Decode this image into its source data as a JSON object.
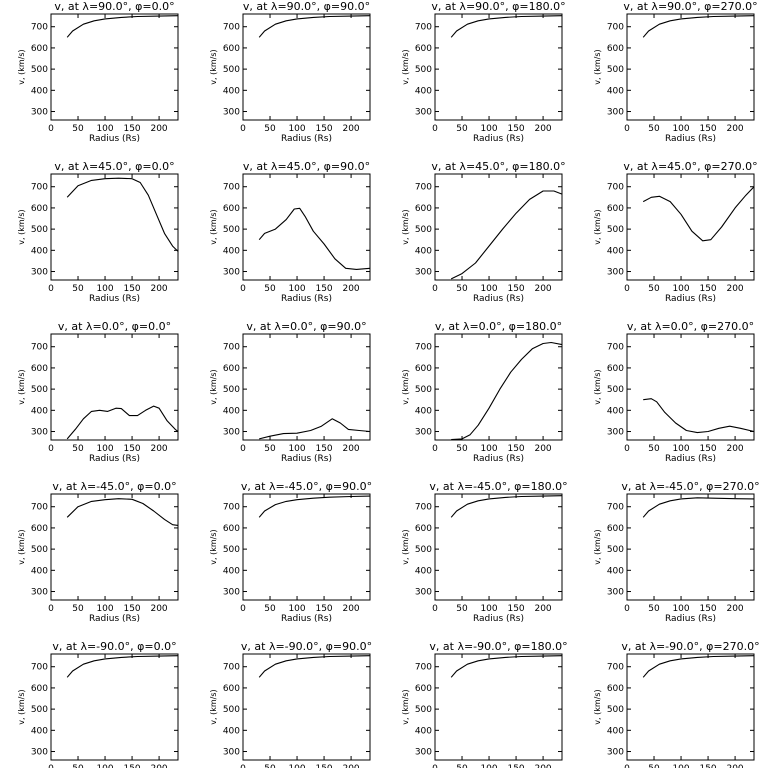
{
  "figure": {
    "panel_titles": [
      "v, at λ=90.0°, φ=0.0°",
      "v, at λ=90.0°, φ=90.0°",
      "v, at λ=90.0°, φ=180.0°",
      "v, at λ=90.0°, φ=270.0°",
      "v, at λ=45.0°, φ=0.0°",
      "v, at λ=45.0°, φ=90.0°",
      "v, at λ=45.0°, φ=180.0°",
      "v, at λ=45.0°, φ=270.0°",
      "v, at λ=0.0°, φ=0.0°",
      "v, at λ=0.0°, φ=90.0°",
      "v, at λ=0.0°, φ=180.0°",
      "v, at λ=0.0°, φ=270.0°",
      "v, at λ=-45.0°, φ=0.0°",
      "v, at λ=-45.0°, φ=90.0°",
      "v, at λ=-45.0°, φ=180.0°",
      "v, at λ=-45.0°, φ=270.0°",
      "v, at λ=-90.0°, φ=0.0°",
      "v, at λ=-90.0°, φ=90.0°",
      "v, at λ=-90.0°, φ=180.0°",
      "v, at λ=-90.0°, φ=270.0°"
    ],
    "xlabel": "Radius (Rs)",
    "ylabel": "v, (km/s)"
  },
  "chart_data": [
    {
      "type": "line",
      "title": "v, at λ=90.0°, φ=0.0°",
      "xlabel": "Radius (Rs)",
      "ylabel": "v, (km/s)",
      "xlim": [
        0,
        235
      ],
      "ylim": [
        260,
        760
      ],
      "xticks": [
        0,
        50,
        100,
        150,
        200
      ],
      "yticks": [
        300,
        400,
        500,
        600,
        700
      ],
      "series": [
        {
          "x": [
            30,
            40,
            60,
            80,
            100,
            130,
            160,
            200,
            235
          ],
          "y": [
            650,
            680,
            712,
            728,
            737,
            744,
            748,
            750,
            752
          ]
        }
      ]
    },
    {
      "type": "line",
      "title": "v, at λ=90.0°, φ=90.0°",
      "xlabel": "Radius (Rs)",
      "ylabel": "v, (km/s)",
      "xlim": [
        0,
        235
      ],
      "ylim": [
        260,
        760
      ],
      "xticks": [
        0,
        50,
        100,
        150,
        200
      ],
      "yticks": [
        300,
        400,
        500,
        600,
        700
      ],
      "series": [
        {
          "x": [
            30,
            40,
            60,
            80,
            100,
            130,
            160,
            200,
            235
          ],
          "y": [
            650,
            680,
            712,
            728,
            737,
            744,
            748,
            750,
            752
          ]
        }
      ]
    },
    {
      "type": "line",
      "title": "v, at λ=90.0°, φ=180.0°",
      "xlabel": "Radius (Rs)",
      "ylabel": "v, (km/s)",
      "xlim": [
        0,
        235
      ],
      "ylim": [
        260,
        760
      ],
      "xticks": [
        0,
        50,
        100,
        150,
        200
      ],
      "yticks": [
        300,
        400,
        500,
        600,
        700
      ],
      "series": [
        {
          "x": [
            30,
            40,
            60,
            80,
            100,
            130,
            160,
            200,
            235
          ],
          "y": [
            650,
            680,
            712,
            728,
            737,
            744,
            748,
            750,
            752
          ]
        }
      ]
    },
    {
      "type": "line",
      "title": "v, at λ=90.0°, φ=270.0°",
      "xlabel": "Radius (Rs)",
      "ylabel": "v, (km/s)",
      "xlim": [
        0,
        235
      ],
      "ylim": [
        260,
        760
      ],
      "xticks": [
        0,
        50,
        100,
        150,
        200
      ],
      "yticks": [
        300,
        400,
        500,
        600,
        700
      ],
      "series": [
        {
          "x": [
            30,
            40,
            60,
            80,
            100,
            130,
            160,
            200,
            235
          ],
          "y": [
            650,
            680,
            712,
            728,
            737,
            744,
            748,
            750,
            752
          ]
        }
      ]
    },
    {
      "type": "line",
      "title": "v, at λ=45.0°, φ=0.0°",
      "xlabel": "Radius (Rs)",
      "ylabel": "v, (km/s)",
      "xlim": [
        0,
        235
      ],
      "ylim": [
        260,
        760
      ],
      "xticks": [
        0,
        50,
        100,
        150,
        200
      ],
      "yticks": [
        300,
        400,
        500,
        600,
        700
      ],
      "series": [
        {
          "x": [
            30,
            50,
            75,
            100,
            125,
            150,
            165,
            180,
            195,
            210,
            225,
            235
          ],
          "y": [
            650,
            705,
            730,
            738,
            740,
            738,
            720,
            660,
            570,
            480,
            420,
            395
          ]
        }
      ]
    },
    {
      "type": "line",
      "title": "v, at λ=45.0°, φ=90.0°",
      "xlabel": "Radius (Rs)",
      "ylabel": "v, (km/s)",
      "xlim": [
        0,
        235
      ],
      "ylim": [
        260,
        760
      ],
      "xticks": [
        0,
        50,
        100,
        150,
        200
      ],
      "yticks": [
        300,
        400,
        500,
        600,
        700
      ],
      "series": [
        {
          "x": [
            30,
            40,
            60,
            80,
            95,
            105,
            115,
            130,
            150,
            170,
            190,
            210,
            235
          ],
          "y": [
            450,
            480,
            500,
            545,
            595,
            598,
            560,
            490,
            430,
            360,
            315,
            310,
            315
          ]
        }
      ]
    },
    {
      "type": "line",
      "title": "v, at λ=45.0°, φ=180.0°",
      "xlabel": "Radius (Rs)",
      "ylabel": "v, (km/s)",
      "xlim": [
        0,
        235
      ],
      "ylim": [
        260,
        760
      ],
      "xticks": [
        0,
        50,
        100,
        150,
        200
      ],
      "yticks": [
        300,
        400,
        500,
        600,
        700
      ],
      "series": [
        {
          "x": [
            30,
            50,
            75,
            100,
            125,
            150,
            175,
            200,
            220,
            235
          ],
          "y": [
            265,
            290,
            340,
            420,
            500,
            575,
            640,
            680,
            680,
            665
          ]
        }
      ]
    },
    {
      "type": "line",
      "title": "v, at λ=45.0°, φ=270.0°",
      "xlabel": "Radius (Rs)",
      "ylabel": "v, (km/s)",
      "xlim": [
        0,
        235
      ],
      "ylim": [
        260,
        760
      ],
      "xticks": [
        0,
        50,
        100,
        150,
        200
      ],
      "yticks": [
        300,
        400,
        500,
        600,
        700
      ],
      "series": [
        {
          "x": [
            30,
            45,
            60,
            80,
            100,
            120,
            140,
            155,
            175,
            200,
            220,
            235
          ],
          "y": [
            630,
            650,
            655,
            630,
            570,
            490,
            445,
            450,
            510,
            600,
            660,
            700
          ]
        }
      ]
    },
    {
      "type": "line",
      "title": "v, at λ=0.0°, φ=0.0°",
      "xlabel": "Radius (Rs)",
      "ylabel": "v, (km/s)",
      "xlim": [
        0,
        235
      ],
      "ylim": [
        260,
        760
      ],
      "xticks": [
        0,
        50,
        100,
        150,
        200
      ],
      "yticks": [
        300,
        400,
        500,
        600,
        700
      ],
      "series": [
        {
          "x": [
            30,
            45,
            60,
            75,
            90,
            105,
            120,
            130,
            145,
            160,
            175,
            190,
            200,
            215,
            230,
            235
          ],
          "y": [
            265,
            310,
            360,
            395,
            400,
            395,
            410,
            408,
            375,
            375,
            400,
            420,
            410,
            350,
            310,
            300
          ]
        }
      ]
    },
    {
      "type": "line",
      "title": "v, at λ=0.0°, φ=90.0°",
      "xlabel": "Radius (Rs)",
      "ylabel": "v, (km/s)",
      "xlim": [
        0,
        235
      ],
      "ylim": [
        260,
        760
      ],
      "xticks": [
        0,
        50,
        100,
        150,
        200
      ],
      "yticks": [
        300,
        400,
        500,
        600,
        700
      ],
      "series": [
        {
          "x": [
            30,
            50,
            75,
            100,
            125,
            145,
            165,
            180,
            195,
            215,
            235
          ],
          "y": [
            265,
            278,
            290,
            292,
            305,
            325,
            360,
            340,
            310,
            305,
            300
          ]
        }
      ]
    },
    {
      "type": "line",
      "title": "v, at λ=0.0°, φ=180.0°",
      "xlabel": "Radius (Rs)",
      "ylabel": "v, (km/s)",
      "xlim": [
        0,
        235
      ],
      "ylim": [
        260,
        760
      ],
      "xticks": [
        0,
        50,
        100,
        150,
        200
      ],
      "yticks": [
        300,
        400,
        500,
        600,
        700
      ],
      "series": [
        {
          "x": [
            30,
            50,
            65,
            80,
            100,
            120,
            140,
            160,
            180,
            200,
            215,
            235
          ],
          "y": [
            262,
            265,
            285,
            330,
            410,
            500,
            580,
            640,
            690,
            715,
            720,
            710
          ]
        }
      ]
    },
    {
      "type": "line",
      "title": "v, at λ=0.0°, φ=270.0°",
      "xlabel": "Radius (Rs)",
      "ylabel": "v, (km/s)",
      "xlim": [
        0,
        235
      ],
      "ylim": [
        260,
        760
      ],
      "xticks": [
        0,
        50,
        100,
        150,
        200
      ],
      "yticks": [
        300,
        400,
        500,
        600,
        700
      ],
      "series": [
        {
          "x": [
            30,
            45,
            55,
            70,
            90,
            110,
            130,
            150,
            170,
            190,
            210,
            235
          ],
          "y": [
            450,
            455,
            440,
            390,
            340,
            305,
            295,
            300,
            315,
            325,
            315,
            300
          ]
        }
      ]
    },
    {
      "type": "line",
      "title": "v, at λ=-45.0°, φ=0.0°",
      "xlabel": "Radius (Rs)",
      "ylabel": "v, (km/s)",
      "xlim": [
        0,
        235
      ],
      "ylim": [
        260,
        760
      ],
      "xticks": [
        0,
        50,
        100,
        150,
        200
      ],
      "yticks": [
        300,
        400,
        500,
        600,
        700
      ],
      "series": [
        {
          "x": [
            30,
            50,
            75,
            100,
            125,
            150,
            170,
            190,
            210,
            225,
            235
          ],
          "y": [
            650,
            700,
            725,
            733,
            738,
            735,
            715,
            680,
            640,
            615,
            612
          ]
        }
      ]
    },
    {
      "type": "line",
      "title": "v, at λ=-45.0°, φ=90.0°",
      "xlabel": "Radius (Rs)",
      "ylabel": "v, (km/s)",
      "xlim": [
        0,
        235
      ],
      "ylim": [
        260,
        760
      ],
      "xticks": [
        0,
        50,
        100,
        150,
        200
      ],
      "yticks": [
        300,
        400,
        500,
        600,
        700
      ],
      "series": [
        {
          "x": [
            30,
            40,
            60,
            80,
            100,
            130,
            160,
            200,
            235
          ],
          "y": [
            650,
            680,
            710,
            725,
            733,
            740,
            745,
            748,
            750
          ]
        }
      ]
    },
    {
      "type": "line",
      "title": "v, at λ=-45.0°, φ=180.0°",
      "xlabel": "Radius (Rs)",
      "ylabel": "v, (km/s)",
      "xlim": [
        0,
        235
      ],
      "ylim": [
        260,
        760
      ],
      "xticks": [
        0,
        50,
        100,
        150,
        200
      ],
      "yticks": [
        300,
        400,
        500,
        600,
        700
      ],
      "series": [
        {
          "x": [
            30,
            40,
            60,
            80,
            100,
            130,
            160,
            200,
            235
          ],
          "y": [
            650,
            680,
            712,
            728,
            737,
            744,
            748,
            750,
            752
          ]
        }
      ]
    },
    {
      "type": "line",
      "title": "v, at λ=-45.0°, φ=270.0°",
      "xlabel": "Radius (Rs)",
      "ylabel": "v, (km/s)",
      "xlim": [
        0,
        235
      ],
      "ylim": [
        260,
        760
      ],
      "xticks": [
        0,
        50,
        100,
        150,
        200
      ],
      "yticks": [
        300,
        400,
        500,
        600,
        700
      ],
      "series": [
        {
          "x": [
            30,
            40,
            60,
            80,
            100,
            130,
            160,
            200,
            235
          ],
          "y": [
            650,
            680,
            712,
            728,
            737,
            742,
            740,
            738,
            737
          ]
        }
      ]
    },
    {
      "type": "line",
      "title": "v, at λ=-90.0°, φ=0.0°",
      "xlabel": "Radius (Rs)",
      "ylabel": "v, (km/s)",
      "xlim": [
        0,
        235
      ],
      "ylim": [
        260,
        760
      ],
      "xticks": [
        0,
        50,
        100,
        150,
        200
      ],
      "yticks": [
        300,
        400,
        500,
        600,
        700
      ],
      "series": [
        {
          "x": [
            30,
            40,
            60,
            80,
            100,
            130,
            160,
            200,
            235
          ],
          "y": [
            650,
            680,
            712,
            728,
            737,
            744,
            748,
            750,
            752
          ]
        }
      ]
    },
    {
      "type": "line",
      "title": "v, at λ=-90.0°, φ=90.0°",
      "xlabel": "Radius (Rs)",
      "ylabel": "v, (km/s)",
      "xlim": [
        0,
        235
      ],
      "ylim": [
        260,
        760
      ],
      "xticks": [
        0,
        50,
        100,
        150,
        200
      ],
      "yticks": [
        300,
        400,
        500,
        600,
        700
      ],
      "series": [
        {
          "x": [
            30,
            40,
            60,
            80,
            100,
            130,
            160,
            200,
            235
          ],
          "y": [
            650,
            680,
            712,
            728,
            737,
            744,
            748,
            750,
            752
          ]
        }
      ]
    },
    {
      "type": "line",
      "title": "v, at λ=-90.0°, φ=180.0°",
      "xlabel": "Radius (Rs)",
      "ylabel": "v, (km/s)",
      "xlim": [
        0,
        235
      ],
      "ylim": [
        260,
        760
      ],
      "xticks": [
        0,
        50,
        100,
        150,
        200
      ],
      "yticks": [
        300,
        400,
        500,
        600,
        700
      ],
      "series": [
        {
          "x": [
            30,
            40,
            60,
            80,
            100,
            130,
            160,
            200,
            235
          ],
          "y": [
            650,
            680,
            712,
            728,
            737,
            744,
            748,
            750,
            752
          ]
        }
      ]
    },
    {
      "type": "line",
      "title": "v, at λ=-90.0°, φ=270.0°",
      "xlabel": "Radius (Rs)",
      "ylabel": "v, (km/s)",
      "xlim": [
        0,
        235
      ],
      "ylim": [
        260,
        760
      ],
      "xticks": [
        0,
        50,
        100,
        150,
        200
      ],
      "yticks": [
        300,
        400,
        500,
        600,
        700
      ],
      "series": [
        {
          "x": [
            30,
            40,
            60,
            80,
            100,
            130,
            160,
            200,
            235
          ],
          "y": [
            650,
            680,
            712,
            728,
            737,
            744,
            748,
            750,
            752
          ]
        }
      ]
    }
  ]
}
